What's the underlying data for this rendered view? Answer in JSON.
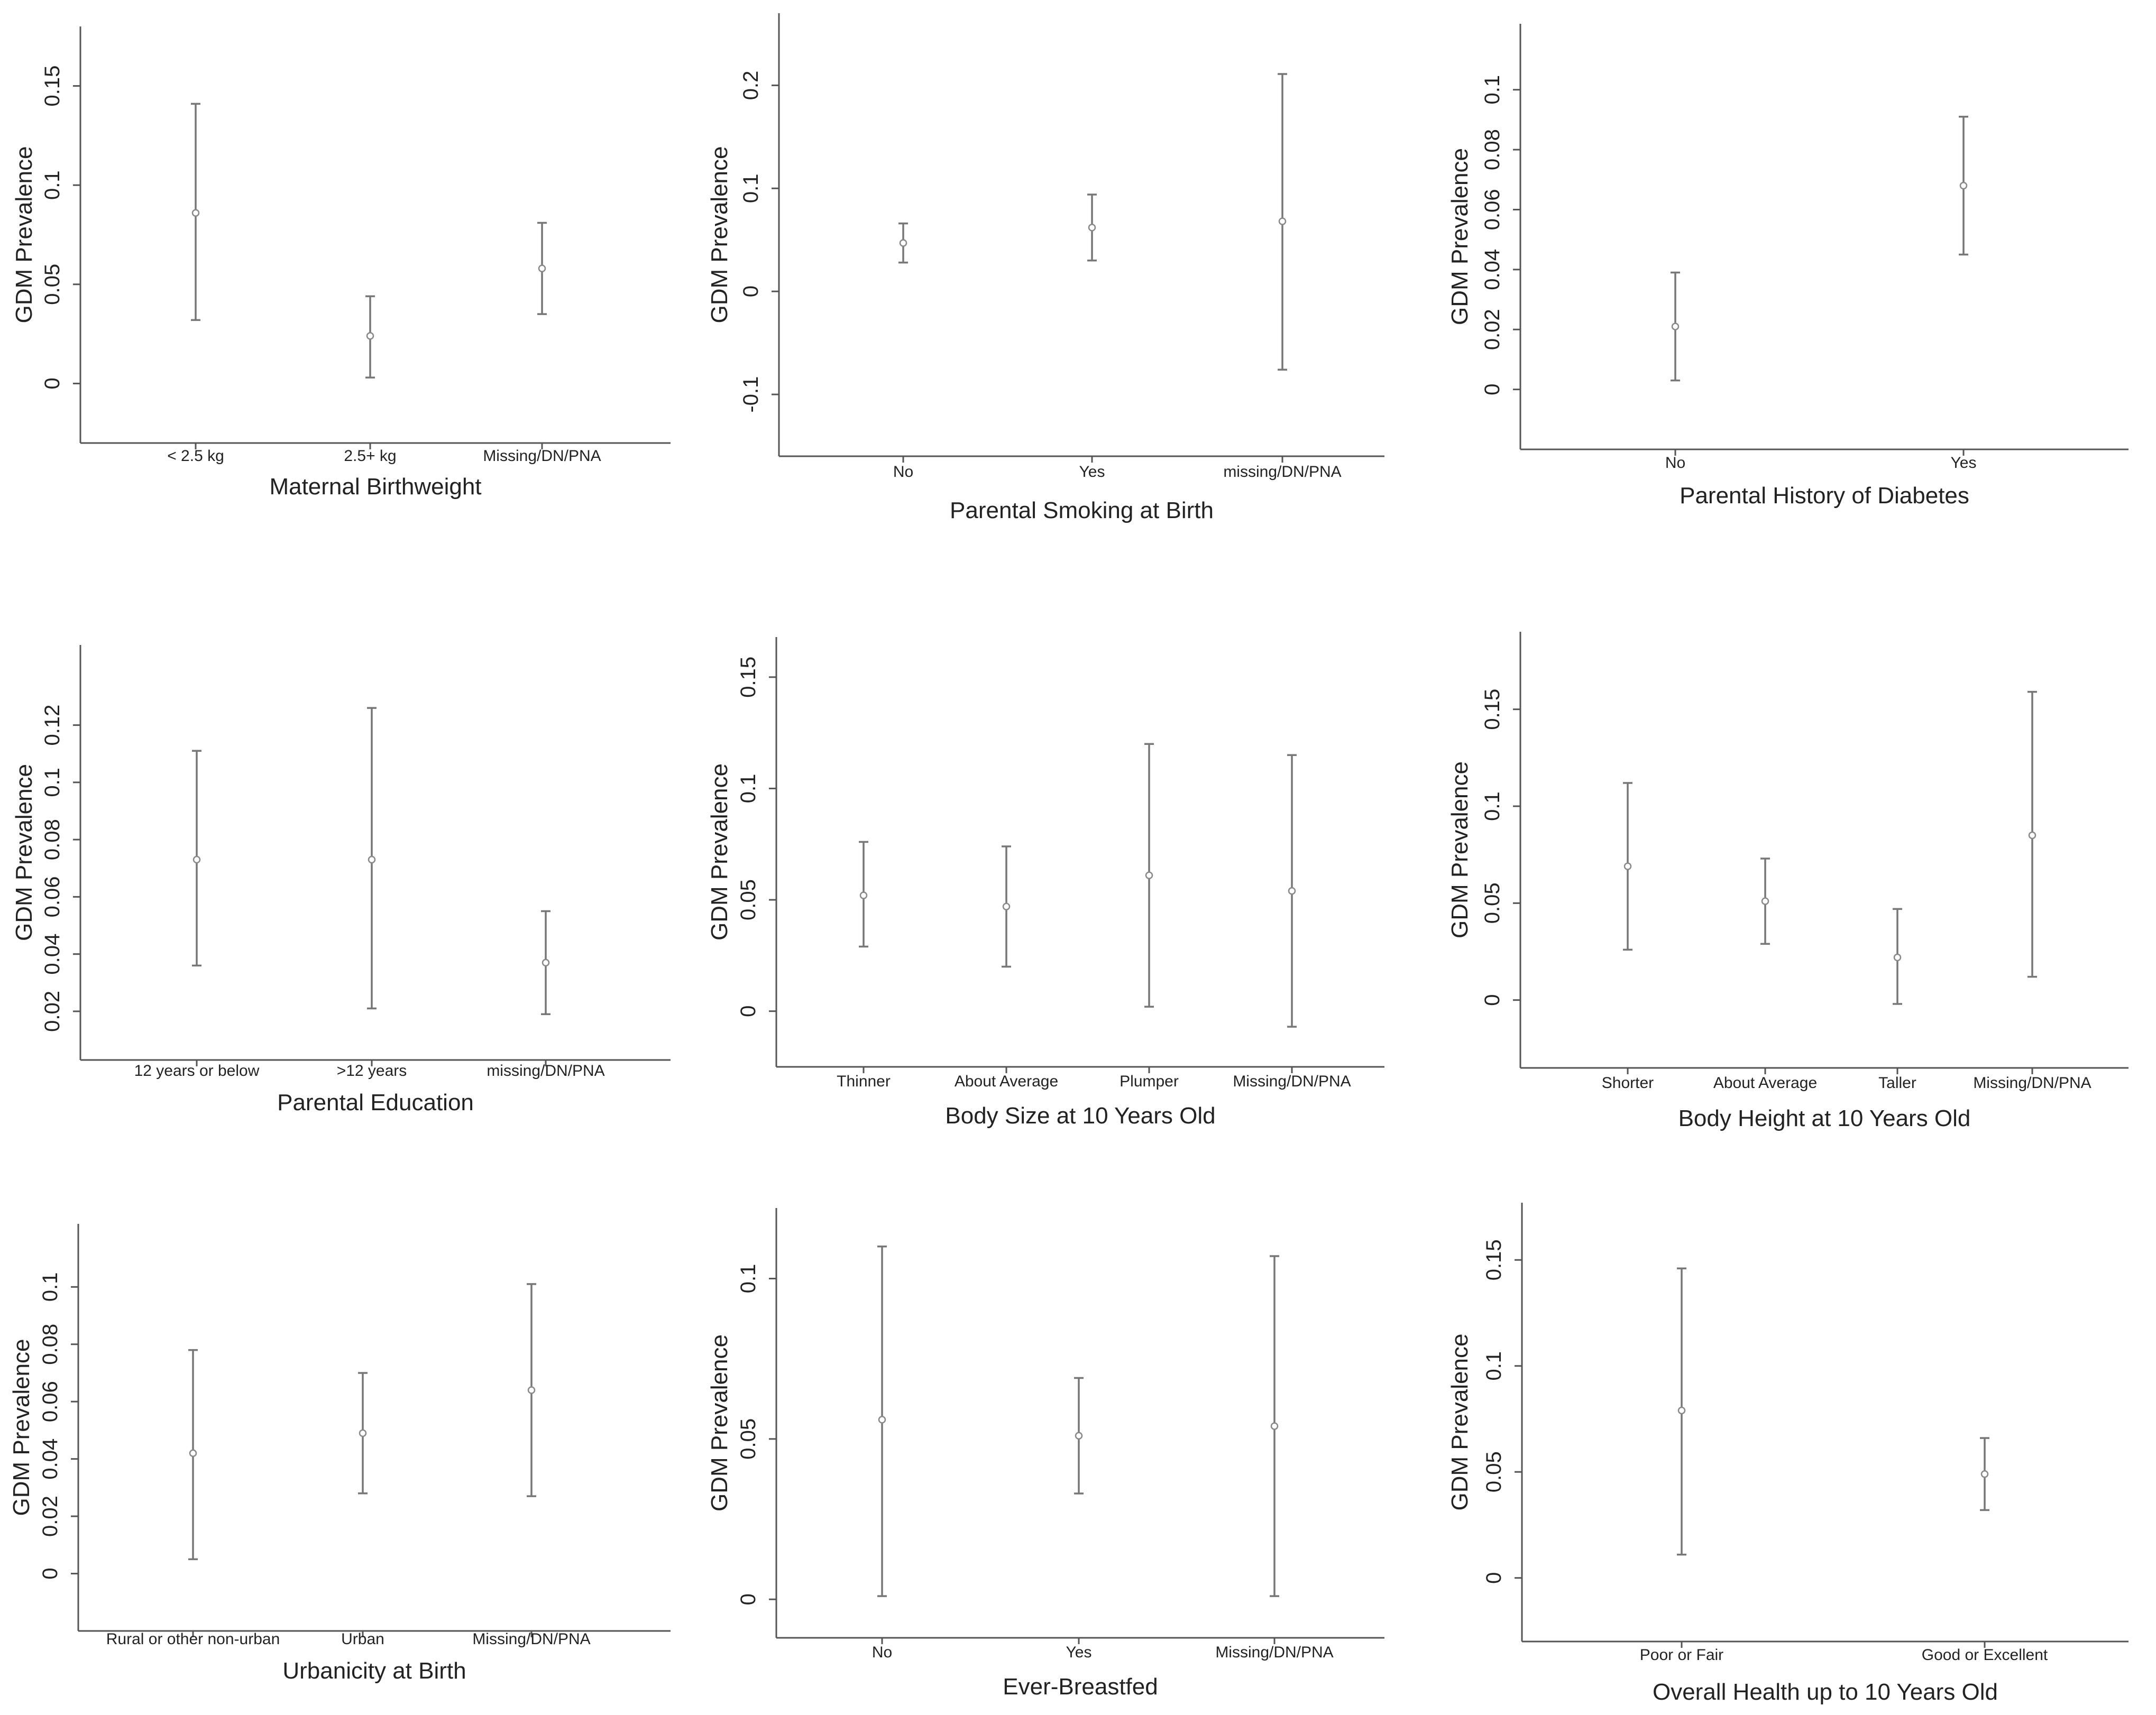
{
  "chart_data": [
    {
      "type": "scatter",
      "xlabel": "Maternal Birthweight",
      "ylabel": "GDM Prevalence",
      "categories": [
        "< 2.5 kg",
        "2.5+ kg",
        "Missing/DN/PNA"
      ],
      "estimates": [
        0.086,
        0.024,
        0.058
      ],
      "ci_low": [
        0.032,
        0.003,
        0.035
      ],
      "ci_high": [
        0.141,
        0.044,
        0.081
      ],
      "ylim": [
        -0.03,
        0.18
      ],
      "yticks": [
        0,
        0.05,
        0.1,
        0.15
      ],
      "ytick_labels": [
        "0",
        "0.05",
        "0.1",
        "0.15"
      ]
    },
    {
      "type": "scatter",
      "xlabel": "Parental Smoking at Birth",
      "ylabel": "GDM Prevalence",
      "categories": [
        "No",
        "Yes",
        "missing/DN/PNA"
      ],
      "estimates": [
        0.047,
        0.062,
        0.068
      ],
      "ci_low": [
        0.028,
        0.03,
        -0.076
      ],
      "ci_high": [
        0.066,
        0.094,
        0.211
      ],
      "ylim": [
        -0.16,
        0.27
      ],
      "yticks": [
        -0.1,
        0,
        0.1,
        0.2
      ],
      "ytick_labels": [
        "-0.1",
        "0",
        "0.1",
        "0.2"
      ]
    },
    {
      "type": "scatter",
      "xlabel": "Parental History of Diabetes",
      "ylabel": "GDM Prevalence",
      "categories": [
        "No",
        "Yes"
      ],
      "estimates": [
        0.021,
        0.068
      ],
      "ci_low": [
        0.003,
        0.045
      ],
      "ci_high": [
        0.039,
        0.091
      ],
      "ylim": [
        -0.02,
        0.122
      ],
      "yticks": [
        0,
        0.02,
        0.04,
        0.06,
        0.08,
        0.1
      ],
      "ytick_labels": [
        "0",
        "0.02",
        "0.04",
        "0.06",
        "0.08",
        "0.1"
      ]
    },
    {
      "type": "scatter",
      "xlabel": "Parental Education",
      "ylabel": "GDM Prevalence",
      "categories": [
        "12 years or below",
        ">12 years",
        "missing/DN/PNA"
      ],
      "estimates": [
        0.073,
        0.073,
        0.037
      ],
      "ci_low": [
        0.036,
        0.021,
        0.019
      ],
      "ci_high": [
        0.111,
        0.126,
        0.055
      ],
      "ylim": [
        0.003,
        0.148
      ],
      "yticks": [
        0.02,
        0.04,
        0.06,
        0.08,
        0.1,
        0.12
      ],
      "ytick_labels": [
        "0.02",
        "0.04",
        "0.06",
        "0.08",
        "0.1",
        "0.12"
      ]
    },
    {
      "type": "scatter",
      "xlabel": "Body Size at 10 Years Old",
      "ylabel": "GDM Prevalence",
      "categories": [
        "Thinner",
        "About Average",
        "Plumper",
        "Missing/DN/PNA"
      ],
      "estimates": [
        0.052,
        0.047,
        0.061,
        0.054
      ],
      "ci_low": [
        0.029,
        0.02,
        0.002,
        -0.007
      ],
      "ci_high": [
        0.076,
        0.074,
        0.12,
        0.115
      ],
      "ylim": [
        -0.025,
        0.168
      ],
      "yticks": [
        0,
        0.05,
        0.1,
        0.15
      ],
      "ytick_labels": [
        "0",
        "0.05",
        "0.1",
        "0.15"
      ]
    },
    {
      "type": "scatter",
      "xlabel": "Body Height at 10 Years Old",
      "ylabel": "GDM Prevalence",
      "categories": [
        "Shorter",
        "About Average",
        "Taller",
        "Missing/DN/PNA"
      ],
      "estimates": [
        0.069,
        0.051,
        0.022,
        0.085
      ],
      "ci_low": [
        0.026,
        0.029,
        -0.002,
        0.012
      ],
      "ci_high": [
        0.112,
        0.073,
        0.047,
        0.159
      ],
      "ylim": [
        -0.035,
        0.19
      ],
      "yticks": [
        0,
        0.05,
        0.1,
        0.15
      ],
      "ytick_labels": [
        "0",
        "0.05",
        "0.1",
        "0.15"
      ]
    },
    {
      "type": "scatter",
      "xlabel": "Urbanicity at Birth",
      "ylabel": "GDM Prevalence",
      "categories": [
        "Rural or other non-urban",
        "Urban",
        "Missing/DN/PNA"
      ],
      "estimates": [
        0.042,
        0.049,
        0.064
      ],
      "ci_low": [
        0.005,
        0.028,
        0.027
      ],
      "ci_high": [
        0.078,
        0.07,
        0.101
      ],
      "ylim": [
        -0.02,
        0.122
      ],
      "yticks": [
        0,
        0.02,
        0.04,
        0.06,
        0.08,
        0.1
      ],
      "ytick_labels": [
        "0",
        "0.02",
        "0.04",
        "0.06",
        "0.08",
        "0.1"
      ]
    },
    {
      "type": "scatter",
      "xlabel": "Ever-Breastfed",
      "ylabel": "GDM Prevalence",
      "categories": [
        "No",
        "Yes",
        "Missing/DN/PNA"
      ],
      "estimates": [
        0.056,
        0.051,
        0.054
      ],
      "ci_low": [
        0.001,
        0.033,
        0.001
      ],
      "ci_high": [
        0.11,
        0.069,
        0.107
      ],
      "ylim": [
        -0.012,
        0.122
      ],
      "yticks": [
        0,
        0.05,
        0.1
      ],
      "ytick_labels": [
        "0",
        "0.05",
        "0.1"
      ]
    },
    {
      "type": "scatter",
      "xlabel": "Overall Health up to 10 Years Old",
      "ylabel": "GDM Prevalence",
      "categories": [
        "Poor or Fair",
        "Good or Excellent"
      ],
      "estimates": [
        0.079,
        0.049
      ],
      "ci_low": [
        0.011,
        0.032
      ],
      "ci_high": [
        0.146,
        0.066
      ],
      "ylim": [
        -0.03,
        0.177
      ],
      "yticks": [
        0,
        0.05,
        0.1,
        0.15
      ],
      "ytick_labels": [
        "0",
        "0.05",
        "0.1",
        "0.15"
      ]
    }
  ]
}
